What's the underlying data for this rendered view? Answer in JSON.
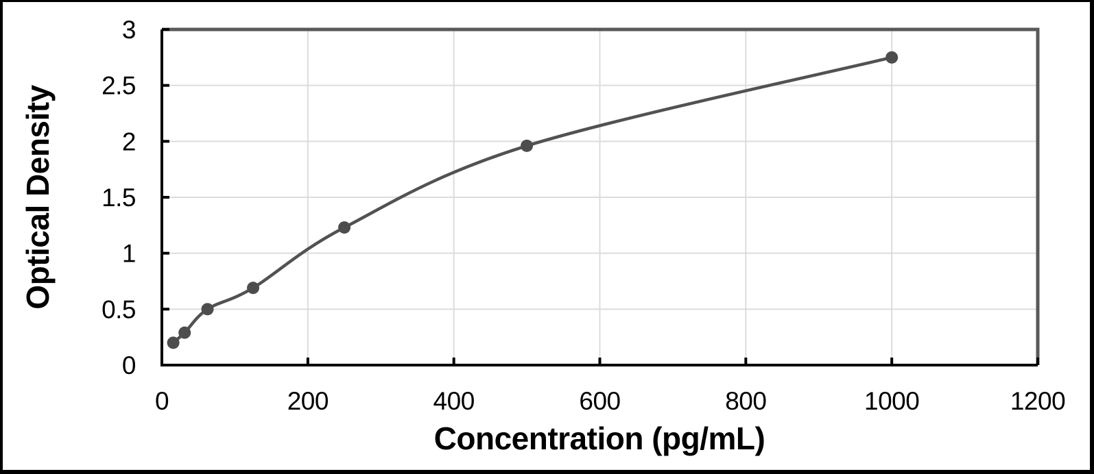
{
  "frame": {
    "border_color": "#000000",
    "background": "#ffffff"
  },
  "chart_data": {
    "type": "scatter",
    "title": "",
    "xlabel": "Concentration (pg/mL)",
    "ylabel": "Optical Density",
    "x": [
      15.6,
      31.2,
      62.5,
      125,
      250,
      500,
      1000
    ],
    "y": [
      0.2,
      0.29,
      0.5,
      0.69,
      1.23,
      1.96,
      2.75
    ],
    "xlim": [
      0,
      1200
    ],
    "ylim": [
      0,
      3
    ],
    "x_ticks": [
      0,
      200,
      400,
      600,
      800,
      1000,
      1200
    ],
    "x_tick_labels": [
      "0",
      "200",
      "400",
      "600",
      "800",
      "1000",
      "1200"
    ],
    "y_ticks": [
      0,
      0.5,
      1,
      1.5,
      2,
      2.5,
      3
    ],
    "y_tick_labels": [
      "0",
      "0.5",
      "1",
      "1.5",
      "2",
      "2.5",
      "3"
    ],
    "grid": true,
    "legend": "none",
    "line": {
      "smooth": true,
      "color": "#525252",
      "width": 4.5
    },
    "marker": {
      "shape": "circle",
      "color": "#4d4d4d",
      "radius": 9
    },
    "colors": {
      "axis": "#000000",
      "gridline": "#dcdcdc",
      "plot_border": "#595959",
      "text": "#000000"
    }
  }
}
